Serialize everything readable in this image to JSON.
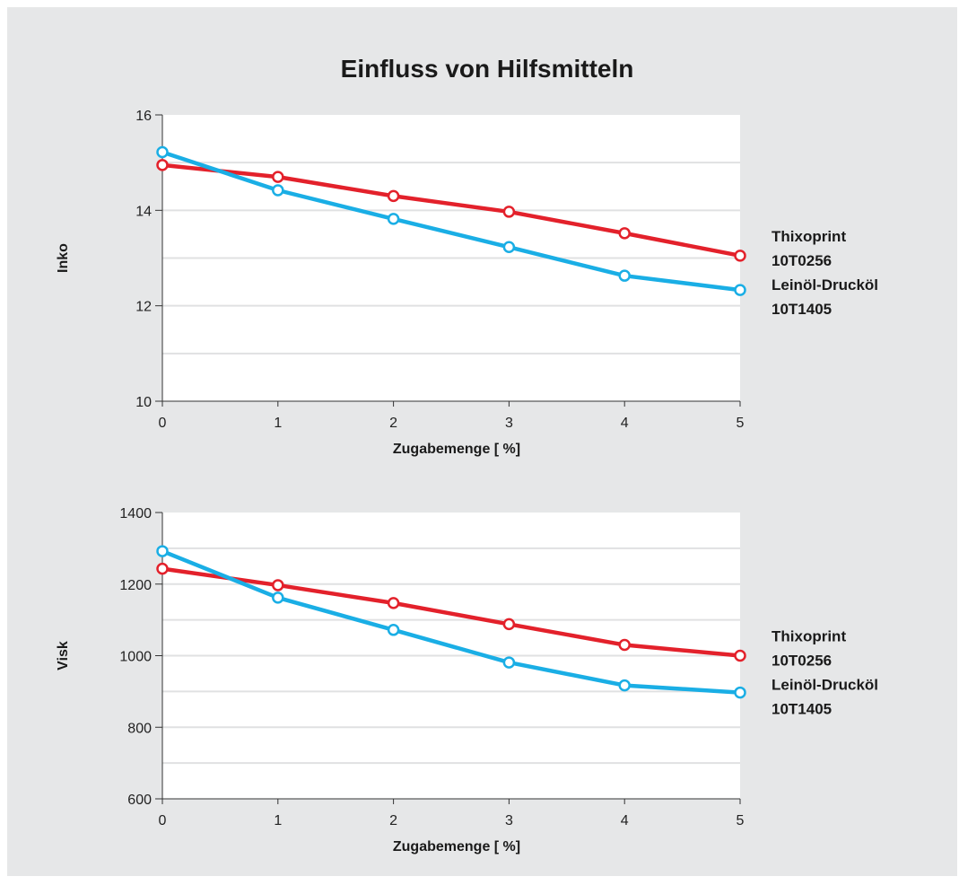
{
  "title": "Einfluss von Hilfsmitteln",
  "colors": {
    "panel": "#e6e7e8",
    "plot_bg": "#ffffff",
    "grid": "#e0e1e2",
    "thixoprint": "#e3212b",
    "leinoel": "#1aaee5"
  },
  "chart_data": [
    {
      "type": "line",
      "xlabel": "Zugabemenge [ %]",
      "ylabel": "Inko",
      "x": [
        0,
        1,
        2,
        3,
        4,
        5
      ],
      "xlim": [
        0,
        5
      ],
      "ylim": [
        10,
        16
      ],
      "yticks": [
        10,
        12,
        14,
        16
      ],
      "grid": "horizontal",
      "legend": "right",
      "series": [
        {
          "name": "Thixoprint 10T0256",
          "label_lines": [
            "Thixoprint",
            "10T0256"
          ],
          "color": "#e3212b",
          "values": [
            14.95,
            14.7,
            14.3,
            13.97,
            13.52,
            13.05
          ]
        },
        {
          "name": "Leinöl-Drucköl 10T1405",
          "label_lines": [
            "Leinöl-Drucköl",
            "10T1405"
          ],
          "color": "#1aaee5",
          "values": [
            15.22,
            14.42,
            13.82,
            13.23,
            12.63,
            12.33
          ]
        }
      ]
    },
    {
      "type": "line",
      "xlabel": "Zugabemenge [ %]",
      "ylabel": "Visk",
      "x": [
        0,
        1,
        2,
        3,
        4,
        5
      ],
      "xlim": [
        0,
        5
      ],
      "ylim": [
        600,
        1400
      ],
      "yticks": [
        600,
        800,
        1000,
        1200,
        1400
      ],
      "grid": "horizontal",
      "legend": "right",
      "series": [
        {
          "name": "Thixoprint 10T0256",
          "label_lines": [
            "Thixoprint",
            "10T0256"
          ],
          "color": "#e3212b",
          "values": [
            1243,
            1197,
            1147,
            1088,
            1030,
            1000
          ]
        },
        {
          "name": "Leinöl-Drucköl 10T1405",
          "label_lines": [
            "Leinöl-Drucköl",
            "10T1405"
          ],
          "color": "#1aaee5",
          "values": [
            1292,
            1162,
            1072,
            981,
            917,
            897
          ]
        }
      ]
    }
  ]
}
